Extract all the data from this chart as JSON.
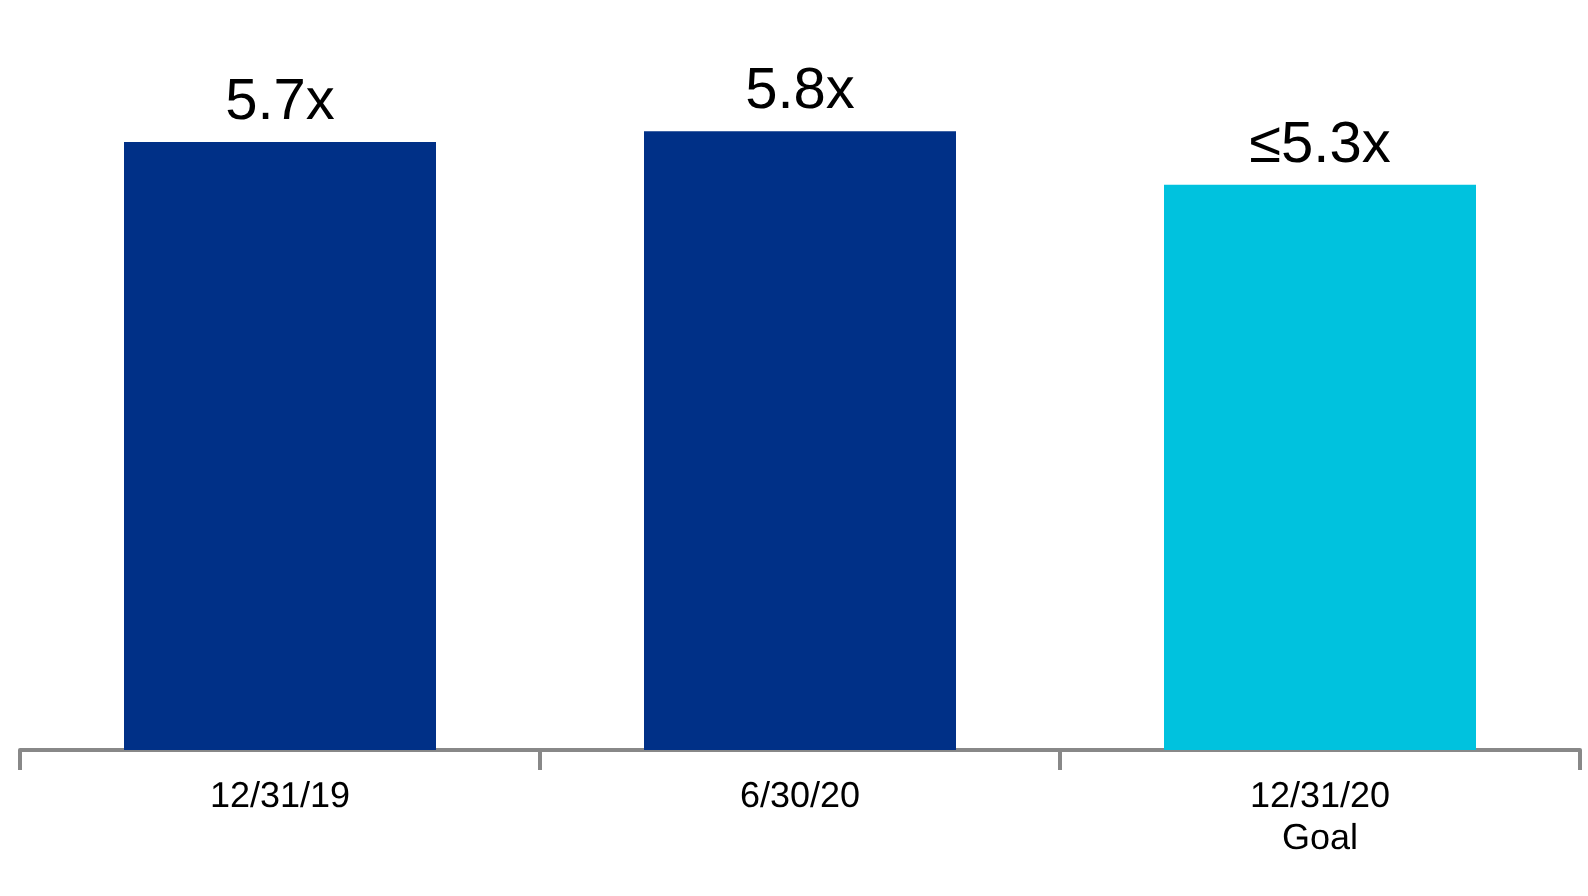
{
  "chart_data": {
    "type": "bar",
    "categories": [
      "12/31/19",
      "6/30/20",
      "12/31/20\nGoal"
    ],
    "values": [
      5.7,
      5.8,
      5.3
    ],
    "colors": [
      "#003087",
      "#003087",
      "#00c2de"
    ],
    "value_labels": [
      "5.7x",
      "5.8x",
      "≤5.3x"
    ],
    "tick_labels": "x"
  }
}
